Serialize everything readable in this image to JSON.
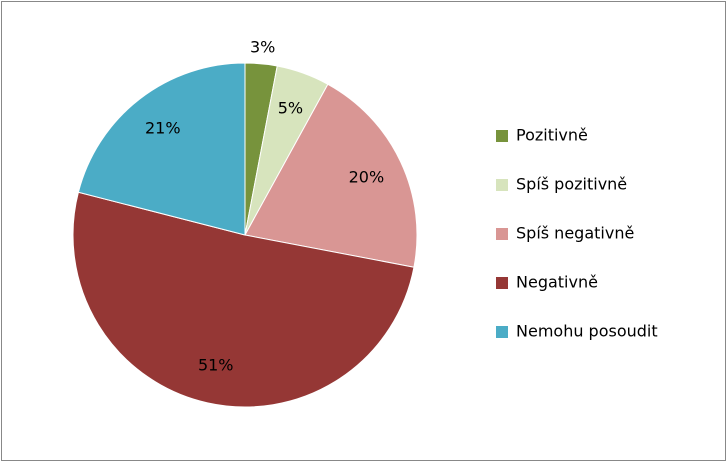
{
  "chart_data": {
    "type": "pie",
    "categories": [
      "Pozitivně",
      "Spíš pozitivně",
      "Spíš negativně",
      "Negativně",
      "Nemohu posoudit"
    ],
    "values": [
      3,
      5,
      20,
      51,
      21
    ],
    "value_labels": [
      "3%",
      "5%",
      "20%",
      "51%",
      "21%"
    ],
    "colors": [
      "#77933c",
      "#d7e4bd",
      "#d99694",
      "#953735",
      "#4bacc6"
    ],
    "legend": "right"
  }
}
